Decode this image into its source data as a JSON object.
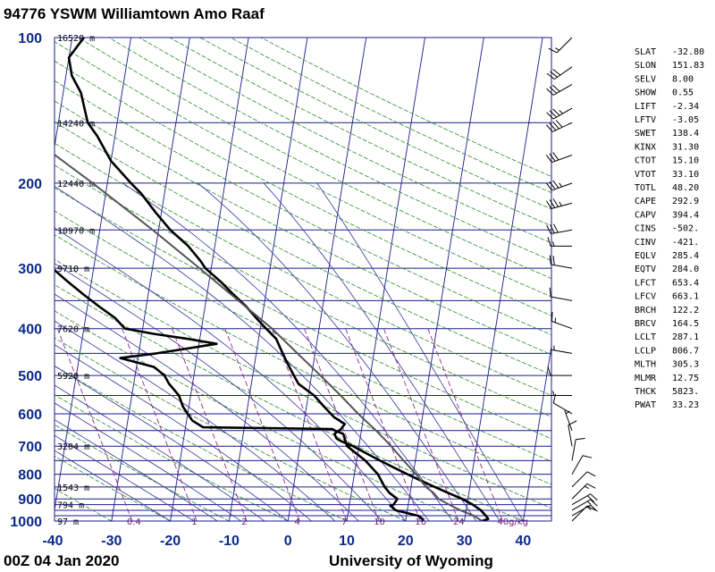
{
  "chart_data": {
    "type": "line",
    "title": "94776 YSWM Williamtown Amo Raaf",
    "footer_left": "00Z 04 Jan 2020",
    "footer_right": "University of Wyoming",
    "xlim": [
      -40,
      45
    ],
    "ylim_hpa": [
      1000,
      100
    ],
    "y_scale": "log-pressure",
    "x_ticks": [
      -40,
      -30,
      -20,
      -10,
      0,
      10,
      20,
      30,
      40
    ],
    "pressure_labels": [
      100,
      200,
      300,
      400,
      500,
      600,
      700,
      800,
      900,
      1000
    ],
    "pressure_lines": [
      100,
      150,
      200,
      250,
      300,
      350,
      400,
      450,
      500,
      550,
      600,
      650,
      700,
      750,
      800,
      850,
      900,
      925,
      950,
      975,
      1000
    ],
    "height_labels": [
      {
        "p": 100,
        "label": "16520 m"
      },
      {
        "p": 150,
        "label": "14240 m"
      },
      {
        "p": 200,
        "label": "12440 m"
      },
      {
        "p": 250,
        "label": "10970 m"
      },
      {
        "p": 300,
        "label": "9710 m"
      },
      {
        "p": 400,
        "label": "7620 m"
      },
      {
        "p": 500,
        "label": "5920 m"
      },
      {
        "p": 700,
        "label": "3204 m"
      },
      {
        "p": 850,
        "label": "1543 m"
      },
      {
        "p": 925,
        "label": "794 m"
      },
      {
        "p": 1000,
        "label": "97 m"
      }
    ],
    "mixing_ratio_labels": [
      {
        "t": -26.5,
        "label": "0.4"
      },
      {
        "t": -15.5,
        "label": "1"
      },
      {
        "t": -7,
        "label": "2"
      },
      {
        "t": 2,
        "label": "4"
      },
      {
        "t": 10,
        "label": "7"
      },
      {
        "t": 15.5,
        "label": "10"
      },
      {
        "t": 22.5,
        "label": "16"
      },
      {
        "t": 29,
        "label": "24"
      },
      {
        "t": 36.5,
        "label": "40g/kg"
      }
    ],
    "grid": true,
    "colors": {
      "isobar": "#1a1a8c",
      "isotherm": "#1a1a8c",
      "dry_adiabat": "#2a8c2a",
      "moist_adiabat": "#33339e",
      "mixing_ratio": "#8c2a8c",
      "temperature": "#000000",
      "dewpoint": "#000000",
      "parcel": "#555555",
      "label_blue": "#0b2a8c"
    },
    "series": [
      {
        "name": "",
        "role": "temperature",
        "points": [
          [
            1000,
            33
          ],
          [
            990,
            34
          ],
          [
            975,
            33.5
          ],
          [
            950,
            32.5
          ],
          [
            925,
            31
          ],
          [
            900,
            29
          ],
          [
            875,
            26.5
          ],
          [
            850,
            24
          ],
          [
            825,
            21.5
          ],
          [
            800,
            19
          ],
          [
            775,
            16.5
          ],
          [
            750,
            14
          ],
          [
            725,
            11.5
          ],
          [
            700,
            9
          ],
          [
            685,
            7
          ],
          [
            675,
            6
          ],
          [
            660,
            5.5
          ],
          [
            645,
            6.5
          ],
          [
            630,
            7
          ],
          [
            610,
            5
          ],
          [
            580,
            3
          ],
          [
            550,
            1
          ],
          [
            520,
            -2
          ],
          [
            500,
            -3
          ],
          [
            480,
            -4
          ],
          [
            460,
            -5
          ],
          [
            440,
            -6
          ],
          [
            420,
            -7
          ],
          [
            400,
            -9
          ],
          [
            380,
            -11
          ],
          [
            360,
            -13
          ],
          [
            340,
            -15.5
          ],
          [
            320,
            -18
          ],
          [
            300,
            -21
          ],
          [
            290,
            -22
          ],
          [
            270,
            -24.5
          ],
          [
            250,
            -28
          ],
          [
            230,
            -31
          ],
          [
            210,
            -34
          ],
          [
            200,
            -36
          ],
          [
            180,
            -40
          ],
          [
            160,
            -43
          ],
          [
            150,
            -45
          ],
          [
            130,
            -47
          ],
          [
            120,
            -49
          ],
          [
            110,
            -50
          ],
          [
            100,
            -48
          ],
          [
            95,
            -46
          ]
        ]
      },
      {
        "name": "",
        "role": "dewpoint",
        "points": [
          [
            1000,
            23
          ],
          [
            990,
            22.8
          ],
          [
            975,
            22
          ],
          [
            950,
            18
          ],
          [
            930,
            17
          ],
          [
            925,
            17.5
          ],
          [
            900,
            18
          ],
          [
            875,
            16.5
          ],
          [
            850,
            15.5
          ],
          [
            800,
            14
          ],
          [
            750,
            11.5
          ],
          [
            700,
            8
          ],
          [
            660,
            7
          ],
          [
            650,
            5.5
          ],
          [
            645,
            5
          ],
          [
            640,
            -17
          ],
          [
            620,
            -19
          ],
          [
            600,
            -20
          ],
          [
            580,
            -21
          ],
          [
            550,
            -22
          ],
          [
            520,
            -24
          ],
          [
            500,
            -25
          ],
          [
            480,
            -27
          ],
          [
            470,
            -30
          ],
          [
            460,
            -33
          ],
          [
            450,
            -27
          ],
          [
            440,
            -22
          ],
          [
            430,
            -17
          ],
          [
            420,
            -22
          ],
          [
            410,
            -28
          ],
          [
            400,
            -33
          ],
          [
            380,
            -35
          ],
          [
            360,
            -38
          ],
          [
            340,
            -41
          ],
          [
            320,
            -44
          ],
          [
            300,
            -47
          ],
          [
            290,
            -50
          ],
          [
            280,
            -53
          ],
          [
            270,
            -50
          ],
          [
            260,
            -49
          ],
          [
            240,
            -49
          ],
          [
            220,
            -50
          ],
          [
            200,
            -52
          ],
          [
            180,
            -60
          ],
          [
            170,
            -67
          ],
          [
            160,
            -74
          ],
          [
            150,
            -75
          ],
          [
            140,
            -73
          ],
          [
            130,
            -68
          ],
          [
            110,
            -62
          ],
          [
            100,
            -59
          ],
          [
            90,
            -57
          ]
        ]
      },
      {
        "name": "",
        "role": "parcel",
        "points": [
          [
            1000,
            33
          ],
          [
            975,
            31.5
          ],
          [
            950,
            29
          ],
          [
            925,
            27
          ],
          [
            900,
            25
          ],
          [
            875,
            24
          ],
          [
            850,
            22.5
          ],
          [
            825,
            21.5
          ],
          [
            800,
            20.5
          ],
          [
            750,
            18
          ],
          [
            700,
            15.5
          ],
          [
            650,
            12.5
          ],
          [
            600,
            9
          ],
          [
            550,
            5.5
          ],
          [
            500,
            1.5
          ],
          [
            450,
            -3
          ],
          [
            400,
            -8
          ],
          [
            350,
            -14.5
          ],
          [
            300,
            -22
          ],
          [
            250,
            -31
          ],
          [
            200,
            -42.5
          ],
          [
            150,
            -58
          ],
          [
            120,
            -70
          ],
          [
            100,
            -79
          ]
        ]
      }
    ],
    "wind_barbs": [
      {
        "p": 1000,
        "dir": 45,
        "spd": 10
      },
      {
        "p": 975,
        "dir": 60,
        "spd": 15
      },
      {
        "p": 950,
        "dir": 60,
        "spd": 15
      },
      {
        "p": 925,
        "dir": 60,
        "spd": 20
      },
      {
        "p": 900,
        "dir": 45,
        "spd": 15
      },
      {
        "p": 850,
        "dir": 45,
        "spd": 10
      },
      {
        "p": 800,
        "dir": 30,
        "spd": 10
      },
      {
        "p": 750,
        "dir": 10,
        "spd": 10
      },
      {
        "p": 700,
        "dir": 350,
        "spd": 10
      },
      {
        "p": 650,
        "dir": 340,
        "spd": 5
      },
      {
        "p": 600,
        "dir": 300,
        "spd": 10
      },
      {
        "p": 550,
        "dir": 270,
        "spd": 5
      },
      {
        "p": 500,
        "dir": 270,
        "spd": 10
      },
      {
        "p": 450,
        "dir": 280,
        "spd": 5
      },
      {
        "p": 400,
        "dir": 290,
        "spd": 15
      },
      {
        "p": 350,
        "dir": 280,
        "spd": 10
      },
      {
        "p": 300,
        "dir": 280,
        "spd": 20
      },
      {
        "p": 270,
        "dir": 270,
        "spd": 15
      },
      {
        "p": 250,
        "dir": 260,
        "spd": 30
      },
      {
        "p": 220,
        "dir": 255,
        "spd": 35
      },
      {
        "p": 200,
        "dir": 250,
        "spd": 35
      },
      {
        "p": 175,
        "dir": 250,
        "spd": 30
      },
      {
        "p": 150,
        "dir": 245,
        "spd": 40
      },
      {
        "p": 140,
        "dir": 240,
        "spd": 35
      },
      {
        "p": 125,
        "dir": 240,
        "spd": 30
      },
      {
        "p": 115,
        "dir": 235,
        "spd": 30
      },
      {
        "p": 100,
        "dir": 225,
        "spd": 15
      }
    ],
    "indices": [
      {
        "name": "SLAT",
        "value": "-32.80"
      },
      {
        "name": "SLON",
        "value": "151.83"
      },
      {
        "name": "SELV",
        "value": "8.00"
      },
      {
        "name": "SHOW",
        "value": "0.55"
      },
      {
        "name": "LIFT",
        "value": "-2.34"
      },
      {
        "name": "LFTV",
        "value": "-3.05"
      },
      {
        "name": "SWET",
        "value": "138.4"
      },
      {
        "name": "KINX",
        "value": "31.30"
      },
      {
        "name": "CTOT",
        "value": "15.10"
      },
      {
        "name": "VTOT",
        "value": "33.10"
      },
      {
        "name": "TOTL",
        "value": "48.20"
      },
      {
        "name": "CAPE",
        "value": "292.9"
      },
      {
        "name": "CAPV",
        "value": "394.4"
      },
      {
        "name": "CINS",
        "value": "-502."
      },
      {
        "name": "CINV",
        "value": "-421."
      },
      {
        "name": "EQLV",
        "value": "285.4"
      },
      {
        "name": "EQTV",
        "value": "284.0"
      },
      {
        "name": "LFCT",
        "value": "653.4"
      },
      {
        "name": "LFCV",
        "value": "663.1"
      },
      {
        "name": "BRCH",
        "value": "122.2"
      },
      {
        "name": "BRCV",
        "value": "164.5"
      },
      {
        "name": "LCLT",
        "value": "287.1"
      },
      {
        "name": "LCLP",
        "value": "806.7"
      },
      {
        "name": "MLTH",
        "value": "305.3"
      },
      {
        "name": "MLMR",
        "value": "12.75"
      },
      {
        "name": "THCK",
        "value": "5823."
      },
      {
        "name": "PWAT",
        "value": "33.23"
      }
    ]
  }
}
